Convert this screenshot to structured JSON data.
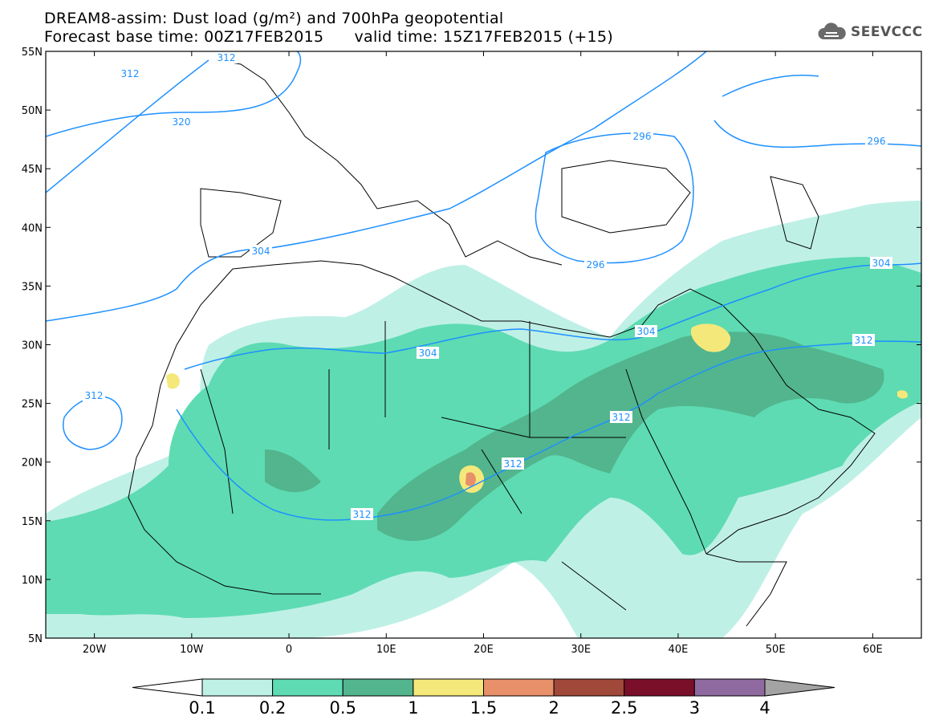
{
  "title": {
    "line1": "DREAM8-assim: Dust load (g/m²) and 700hPa geopotential",
    "line2_left": "Forecast base time: 00Z17FEB2015",
    "line2_right": "valid time: 15Z17FEB2015 (+15)"
  },
  "logo": {
    "text": "SEEVCCC",
    "icon": "cloud-icon"
  },
  "map": {
    "lon_range": [
      -25,
      65
    ],
    "lat_range": [
      5,
      55
    ],
    "lat_ticks": [
      "55N",
      "50N",
      "45N",
      "40N",
      "35N",
      "30N",
      "25N",
      "20N",
      "15N",
      "10N",
      "5N"
    ],
    "lon_ticks": [
      "20W",
      "10W",
      "0",
      "10E",
      "20E",
      "30E",
      "40E",
      "50E",
      "60E"
    ],
    "contour_labels": [
      "312",
      "320",
      "304",
      "296",
      "296",
      "296",
      "304",
      "304",
      "304",
      "312",
      "312",
      "312",
      "312",
      "312",
      "312"
    ]
  },
  "colorbar": {
    "ticks": [
      "0.1",
      "0.2",
      "0.5",
      "1",
      "1.5",
      "2",
      "2.5",
      "3",
      "4"
    ],
    "colors": [
      "#bff0e6",
      "#5edbb2",
      "#52b58e",
      "#f5e87a",
      "#e8906a",
      "#a0483a",
      "#7a0f2a",
      "#8f6aa0",
      "#a3a3a3"
    ]
  },
  "colors": {
    "contour": "#1e90ff",
    "coast": "#000000"
  }
}
